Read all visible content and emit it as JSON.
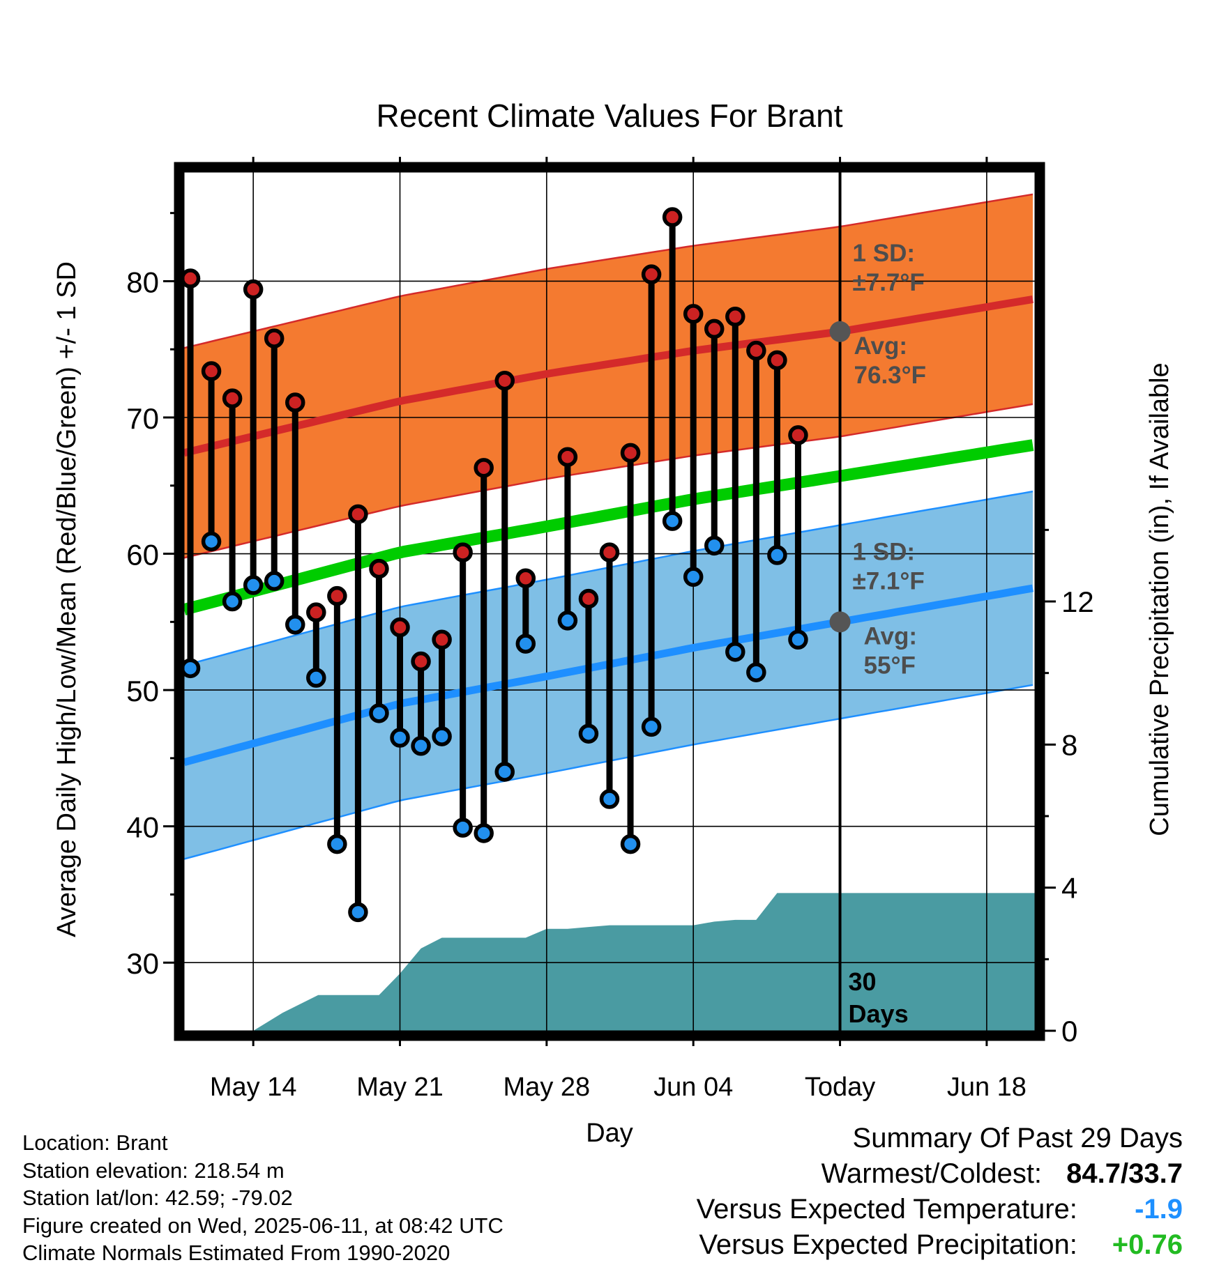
{
  "title": "Recent Climate Values For Brant",
  "colors": {
    "high_band": "#f47a30",
    "high_avg": "#d42a2a",
    "low_band": "#7fbfe6",
    "low_avg": "#1e8fff",
    "mean_line": "#00cc00",
    "precip": "#4a9ba2",
    "high_marker": "#cc2222",
    "low_marker": "#2290ee",
    "today_marker": "#555555"
  },
  "annotations": {
    "high_sd_line1": "1 SD:",
    "high_sd_line2": "±7.7°F",
    "high_avg_line1": "Avg:",
    "high_avg_line2": "76.3°F",
    "low_sd_line1": "1 SD:",
    "low_sd_line2": "±7.1°F",
    "low_avg_line1": "Avg:",
    "low_avg_line2": "55°F",
    "days_line1": "30",
    "days_line2": "Days"
  },
  "chart_data": {
    "type": "line",
    "title": "Recent Climate Values For Brant",
    "xlabel": "Day",
    "ylabel": "Average Daily High/Low/Mean (Red/Blue/Green) +/- 1 SD",
    "y2label": "Cumulative Precipitation (in), If Available",
    "x_ticks": [
      "May 14",
      "May 21",
      "May 28",
      "Jun 04",
      "Today",
      "Jun 18"
    ],
    "x_tick_days": [
      14,
      21,
      28,
      35,
      42,
      49
    ],
    "xlim": [
      10.7,
      51.3
    ],
    "ylim": [
      25,
      88
    ],
    "y_ticks": [
      30,
      40,
      50,
      60,
      70,
      80
    ],
    "y2lim": [
      0,
      24
    ],
    "y2_ticks": [
      0,
      4,
      8,
      12
    ],
    "grid": true,
    "today_day": 42,
    "days": [
      11,
      12,
      13,
      14,
      15,
      16,
      17,
      18,
      19,
      20,
      21,
      22,
      23,
      24,
      25,
      26,
      27,
      28,
      30,
      31,
      32,
      33,
      34,
      35,
      36,
      37,
      38,
      39,
      40,
      41
    ],
    "highs": [
      80.2,
      73.4,
      71.4,
      79.4,
      75.8,
      71.1,
      55.7,
      56.9,
      62.9,
      58.9,
      54.6,
      52.1,
      53.7,
      60.1,
      66.3,
      72.7,
      58.2,
      67.1,
      56.7,
      60.1,
      67.4,
      80.5,
      84.7,
      77.6,
      76.5,
      77.4,
      74.9,
      74.2,
      68.7
    ],
    "lows": [
      51.6,
      60.9,
      56.5,
      57.7,
      58.0,
      54.8,
      50.9,
      38.7,
      33.7,
      48.3,
      46.5,
      45.9,
      46.6,
      39.9,
      39.5,
      44.0,
      53.4,
      55.1,
      46.8,
      42.0,
      38.7,
      47.3,
      62.4,
      58.3,
      60.6,
      52.8,
      51.3,
      59.9,
      53.7
    ],
    "obs_days": [
      11,
      12,
      13,
      14,
      15,
      16,
      17,
      18,
      19,
      20,
      21,
      22,
      23,
      24,
      25,
      26,
      27,
      29,
      30,
      31,
      32,
      33,
      34,
      35,
      36,
      37,
      38,
      39,
      40
    ],
    "normals": {
      "days": [
        10.7,
        21,
        28,
        35,
        42,
        51.3
      ],
      "high_avg": [
        67.4,
        71.2,
        73.2,
        74.9,
        76.3,
        78.7
      ],
      "low_avg": [
        44.7,
        49.0,
        51.0,
        53.1,
        55.0,
        57.5
      ],
      "mean": [
        55.9,
        60.1,
        62.0,
        64.0,
        65.7,
        68.0
      ],
      "high_sd": 7.7,
      "low_sd": 7.1
    },
    "precip_cumulative": {
      "days": [
        14,
        15.4,
        17.1,
        20,
        21,
        22,
        23,
        27,
        28,
        29,
        30,
        31,
        32,
        33,
        34,
        35,
        36,
        37,
        38,
        39,
        40,
        51.3
      ],
      "values": [
        0.0,
        0.5,
        1.0,
        1.0,
        1.6,
        2.3,
        2.6,
        2.6,
        2.85,
        2.85,
        2.9,
        2.95,
        2.95,
        2.95,
        2.95,
        2.95,
        3.05,
        3.1,
        3.1,
        3.85,
        3.85,
        3.85
      ]
    }
  },
  "footer": {
    "location": "Location: Brant",
    "elevation": "Station elevation: 218.54 m",
    "latlon": "Station lat/lon: 42.59; -79.02",
    "created": "Figure created on Wed, 2025-06-11, at 08:42 UTC",
    "normals": "Climate Normals Estimated From 1990-2020"
  },
  "summary": {
    "heading": "Summary Of Past 29 Days",
    "warm_cold_label": "Warmest/Coldest:",
    "warm_cold_value": "84.7/33.7",
    "temp_label": "Versus Expected Temperature:",
    "temp_value": "-1.9",
    "precip_label": "Versus Expected Precipitation:",
    "precip_value": "+0.76"
  }
}
